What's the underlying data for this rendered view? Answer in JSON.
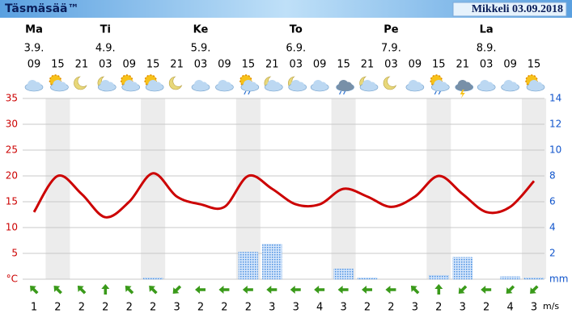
{
  "header": {
    "title": "Täsmäsää™",
    "location": "Mikkeli 03.09.2018"
  },
  "chart_data": {
    "type": "weather",
    "categories": [
      "09",
      "15",
      "21",
      "03",
      "09",
      "15",
      "21",
      "03",
      "09",
      "15",
      "21",
      "03",
      "09",
      "15",
      "21",
      "03",
      "09",
      "15",
      "21",
      "03",
      "09",
      "15"
    ],
    "day_labels": [
      "Ma",
      null,
      null,
      "Ti",
      null,
      null,
      null,
      "Ke",
      null,
      null,
      null,
      "To",
      null,
      null,
      null,
      "Pe",
      null,
      null,
      null,
      "La",
      null,
      null
    ],
    "date_labels": [
      "3.9.",
      null,
      null,
      "4.9.",
      null,
      null,
      null,
      "5.9.",
      null,
      null,
      null,
      "6.9.",
      null,
      null,
      null,
      "7.9.",
      null,
      null,
      null,
      "8.9.",
      null,
      null
    ],
    "temperature": {
      "color": "#cc0000",
      "values": [
        13,
        20,
        16.5,
        12,
        15,
        20.5,
        16,
        14.5,
        14,
        20,
        17.5,
        14.5,
        14.5,
        17.5,
        16,
        14,
        16,
        20,
        16.5,
        13,
        14,
        19
      ]
    },
    "precipitation": {
      "color": "#4a90e2",
      "values": [
        0,
        0,
        0,
        0,
        0,
        0.1,
        0,
        0,
        0,
        2.1,
        2.7,
        0,
        0,
        0.8,
        0.1,
        0,
        0,
        0.3,
        1.7,
        0,
        0.2,
        0.1
      ]
    },
    "wind": {
      "color": "#3a9a1a",
      "unit": "m/s",
      "speed": [
        1,
        2,
        2,
        2,
        2,
        2,
        3,
        2,
        2,
        2,
        3,
        3,
        4,
        3,
        2,
        2,
        3,
        2,
        3,
        2,
        4,
        3
      ],
      "direction": [
        315,
        315,
        315,
        0,
        315,
        315,
        225,
        270,
        270,
        270,
        270,
        270,
        270,
        270,
        270,
        270,
        315,
        0,
        225,
        270,
        225,
        225
      ]
    },
    "ylim": [
      0,
      35
    ],
    "yticks": [
      {
        "value": 0,
        "label": "°C"
      },
      5,
      10,
      15,
      20,
      25,
      30,
      35
    ],
    "ycolor": "#cc0000",
    "y2lim": [
      0,
      14
    ],
    "y2ticks": [
      {
        "value": 0,
        "label": "mm"
      },
      2,
      4,
      6,
      8,
      10,
      12,
      14
    ],
    "y2color": "#1155cc",
    "grid": true
  }
}
